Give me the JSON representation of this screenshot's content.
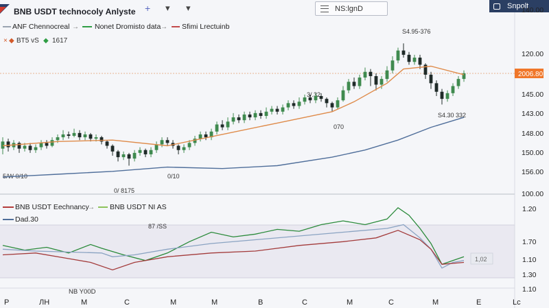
{
  "header": {
    "title": "BNB USDT technocoly  Anlyste",
    "add_label": "+",
    "dropdown_1": "▾",
    "dropdown_2": "▾",
    "ns_label": "NS:lgnD",
    "snapshot_label": "Snpolt"
  },
  "legend_top": {
    "items": [
      {
        "label": "ANF Chennocreal",
        "color": "#9aa3b0"
      },
      {
        "label": "Nonet Dromisto data",
        "color": "#2e9d44"
      },
      {
        "label": "Sfimi Lrectuinb",
        "color": "#c24a4a"
      }
    ],
    "sub_label": "BT5 vS",
    "sub_value": "1617"
  },
  "legend_bottom": {
    "items": [
      {
        "label": "BNB USDT Eechnancy",
        "color": "#b43b3b"
      },
      {
        "label": "BNB USDT NI AS",
        "color": "#8cc35a"
      }
    ],
    "sub": {
      "label": "Dad.30",
      "color": "#4f6e9a"
    }
  },
  "annotations": {
    "peak": "S4.95-376",
    "mid": "3/.32",
    "mid_low": "070",
    "right_low": "S4.30  332",
    "left_low": "5/W  0/10",
    "low_1": "0/ 8175",
    "low_2": "0/10",
    "osc_label": "87 /SS",
    "osc_bottom": "NB Y00D",
    "right_box": "1,02"
  },
  "price_label": "2006.80",
  "axis": {
    "top_right": "140.00",
    "y_upper": [
      "120.00",
      "120.00",
      "145.00",
      "143.00",
      "148.00",
      "150.00",
      "156.00",
      "100.00"
    ],
    "y_lower": [
      "1.20",
      "1.70",
      "1.10",
      "1.30",
      "1.10"
    ],
    "x_labels": [
      "P",
      "ЛH",
      "M",
      "C",
      "M",
      "M",
      "B",
      "C",
      "M",
      "C",
      "M",
      "E",
      "Lc"
    ]
  },
  "colors": {
    "up": "#3f8a4f",
    "down": "#1f2a28",
    "orange": "#df8b4a",
    "blue": "#4f6e9a",
    "green_line": "#2a8a3a",
    "red_line": "#a33b3b",
    "lightblue_line": "#8aa3c2",
    "pricetag": "#f0772a",
    "band": "#e6e4ee"
  },
  "chart_data": [
    {
      "type": "candlestick",
      "title": "",
      "y_axis_labels": [
        "140.00",
        "120.00",
        "120.00",
        "145.00",
        "143.00",
        "148.00",
        "150.00",
        "156.00",
        "100.00"
      ],
      "candles": [
        {
          "i": 0,
          "o": 62,
          "c": 67,
          "h": 70,
          "l": 58
        },
        {
          "i": 1,
          "o": 67,
          "c": 63,
          "h": 69,
          "l": 60
        },
        {
          "i": 2,
          "o": 63,
          "c": 66,
          "h": 68,
          "l": 61
        },
        {
          "i": 3,
          "o": 66,
          "c": 62,
          "h": 67,
          "l": 59
        },
        {
          "i": 4,
          "o": 62,
          "c": 64,
          "h": 66,
          "l": 60
        },
        {
          "i": 5,
          "o": 64,
          "c": 61,
          "h": 66,
          "l": 59
        },
        {
          "i": 6,
          "o": 61,
          "c": 63,
          "h": 65,
          "l": 59
        },
        {
          "i": 7,
          "o": 63,
          "c": 66,
          "h": 68,
          "l": 61
        },
        {
          "i": 8,
          "o": 66,
          "c": 64,
          "h": 68,
          "l": 62
        },
        {
          "i": 9,
          "o": 64,
          "c": 68,
          "h": 70,
          "l": 63
        },
        {
          "i": 10,
          "o": 68,
          "c": 70,
          "h": 72,
          "l": 66
        },
        {
          "i": 11,
          "o": 70,
          "c": 72,
          "h": 75,
          "l": 68
        },
        {
          "i": 12,
          "o": 72,
          "c": 71,
          "h": 74,
          "l": 69
        },
        {
          "i": 13,
          "o": 71,
          "c": 73,
          "h": 76,
          "l": 70
        },
        {
          "i": 14,
          "o": 73,
          "c": 70,
          "h": 75,
          "l": 68
        },
        {
          "i": 15,
          "o": 70,
          "c": 72,
          "h": 74,
          "l": 68
        },
        {
          "i": 16,
          "o": 72,
          "c": 69,
          "h": 73,
          "l": 67
        },
        {
          "i": 17,
          "o": 69,
          "c": 70,
          "h": 72,
          "l": 67
        },
        {
          "i": 18,
          "o": 70,
          "c": 67,
          "h": 71,
          "l": 65
        },
        {
          "i": 19,
          "o": 67,
          "c": 64,
          "h": 68,
          "l": 62
        },
        {
          "i": 20,
          "o": 64,
          "c": 60,
          "h": 65,
          "l": 57
        },
        {
          "i": 21,
          "o": 60,
          "c": 56,
          "h": 61,
          "l": 53
        },
        {
          "i": 22,
          "o": 56,
          "c": 58,
          "h": 60,
          "l": 54
        },
        {
          "i": 23,
          "o": 58,
          "c": 55,
          "h": 59,
          "l": 50
        },
        {
          "i": 24,
          "o": 55,
          "c": 59,
          "h": 61,
          "l": 53
        },
        {
          "i": 25,
          "o": 59,
          "c": 61,
          "h": 63,
          "l": 57
        },
        {
          "i": 26,
          "o": 61,
          "c": 58,
          "h": 62,
          "l": 56
        },
        {
          "i": 27,
          "o": 58,
          "c": 61,
          "h": 63,
          "l": 56
        },
        {
          "i": 28,
          "o": 61,
          "c": 65,
          "h": 67,
          "l": 59
        },
        {
          "i": 29,
          "o": 65,
          "c": 68,
          "h": 70,
          "l": 63
        },
        {
          "i": 30,
          "o": 68,
          "c": 66,
          "h": 70,
          "l": 64
        },
        {
          "i": 31,
          "o": 66,
          "c": 64,
          "h": 68,
          "l": 62
        },
        {
          "i": 32,
          "o": 64,
          "c": 61,
          "h": 65,
          "l": 58
        },
        {
          "i": 33,
          "o": 61,
          "c": 63,
          "h": 65,
          "l": 59
        },
        {
          "i": 34,
          "o": 63,
          "c": 66,
          "h": 68,
          "l": 61
        },
        {
          "i": 35,
          "o": 66,
          "c": 69,
          "h": 71,
          "l": 64
        },
        {
          "i": 36,
          "o": 69,
          "c": 72,
          "h": 74,
          "l": 67
        },
        {
          "i": 37,
          "o": 72,
          "c": 70,
          "h": 74,
          "l": 68
        },
        {
          "i": 38,
          "o": 70,
          "c": 74,
          "h": 76,
          "l": 68
        },
        {
          "i": 39,
          "o": 74,
          "c": 79,
          "h": 81,
          "l": 72
        },
        {
          "i": 40,
          "o": 79,
          "c": 77,
          "h": 82,
          "l": 75
        },
        {
          "i": 41,
          "o": 77,
          "c": 81,
          "h": 84,
          "l": 75
        },
        {
          "i": 42,
          "o": 81,
          "c": 84,
          "h": 87,
          "l": 79
        },
        {
          "i": 43,
          "o": 84,
          "c": 82,
          "h": 86,
          "l": 80
        },
        {
          "i": 44,
          "o": 82,
          "c": 86,
          "h": 88,
          "l": 80
        },
        {
          "i": 45,
          "o": 86,
          "c": 84,
          "h": 88,
          "l": 82
        },
        {
          "i": 46,
          "o": 84,
          "c": 87,
          "h": 89,
          "l": 82
        },
        {
          "i": 47,
          "o": 87,
          "c": 85,
          "h": 89,
          "l": 83
        },
        {
          "i": 48,
          "o": 85,
          "c": 88,
          "h": 91,
          "l": 83
        },
        {
          "i": 49,
          "o": 88,
          "c": 90,
          "h": 92,
          "l": 86
        },
        {
          "i": 50,
          "o": 90,
          "c": 88,
          "h": 92,
          "l": 86
        },
        {
          "i": 51,
          "o": 88,
          "c": 91,
          "h": 93,
          "l": 86
        },
        {
          "i": 52,
          "o": 91,
          "c": 94,
          "h": 96,
          "l": 89
        },
        {
          "i": 53,
          "o": 94,
          "c": 92,
          "h": 96,
          "l": 90
        },
        {
          "i": 54,
          "o": 92,
          "c": 95,
          "h": 98,
          "l": 90
        },
        {
          "i": 55,
          "o": 95,
          "c": 98,
          "h": 100,
          "l": 93
        },
        {
          "i": 56,
          "o": 98,
          "c": 96,
          "h": 100,
          "l": 94
        },
        {
          "i": 57,
          "o": 96,
          "c": 99,
          "h": 101,
          "l": 94
        },
        {
          "i": 58,
          "o": 99,
          "c": 97,
          "h": 101,
          "l": 95
        },
        {
          "i": 59,
          "o": 97,
          "c": 94,
          "h": 98,
          "l": 91
        },
        {
          "i": 60,
          "o": 94,
          "c": 91,
          "h": 95,
          "l": 88
        },
        {
          "i": 61,
          "o": 91,
          "c": 96,
          "h": 98,
          "l": 90
        },
        {
          "i": 62,
          "o": 96,
          "c": 103,
          "h": 106,
          "l": 95
        },
        {
          "i": 63,
          "o": 103,
          "c": 109,
          "h": 111,
          "l": 101
        },
        {
          "i": 64,
          "o": 109,
          "c": 106,
          "h": 112,
          "l": 104
        },
        {
          "i": 65,
          "o": 106,
          "c": 112,
          "h": 114,
          "l": 104
        },
        {
          "i": 66,
          "o": 112,
          "c": 116,
          "h": 119,
          "l": 110
        },
        {
          "i": 67,
          "o": 116,
          "c": 113,
          "h": 118,
          "l": 106
        },
        {
          "i": 68,
          "o": 113,
          "c": 107,
          "h": 115,
          "l": 103
        },
        {
          "i": 69,
          "o": 107,
          "c": 111,
          "h": 113,
          "l": 104
        },
        {
          "i": 70,
          "o": 111,
          "c": 117,
          "h": 120,
          "l": 109
        },
        {
          "i": 71,
          "o": 117,
          "c": 124,
          "h": 127,
          "l": 115
        },
        {
          "i": 72,
          "o": 124,
          "c": 131,
          "h": 133,
          "l": 122
        },
        {
          "i": 73,
          "o": 131,
          "c": 128,
          "h": 136,
          "l": 126
        },
        {
          "i": 74,
          "o": 128,
          "c": 123,
          "h": 130,
          "l": 121
        },
        {
          "i": 75,
          "o": 123,
          "c": 126,
          "h": 128,
          "l": 121
        },
        {
          "i": 76,
          "o": 126,
          "c": 121,
          "h": 128,
          "l": 118
        },
        {
          "i": 77,
          "o": 121,
          "c": 114,
          "h": 122,
          "l": 111
        },
        {
          "i": 78,
          "o": 114,
          "c": 108,
          "h": 116,
          "l": 104
        },
        {
          "i": 79,
          "o": 108,
          "c": 102,
          "h": 110,
          "l": 99
        },
        {
          "i": 80,
          "o": 102,
          "c": 97,
          "h": 104,
          "l": 93
        },
        {
          "i": 81,
          "o": 97,
          "c": 101,
          "h": 103,
          "l": 95
        },
        {
          "i": 82,
          "o": 101,
          "c": 106,
          "h": 108,
          "l": 99
        },
        {
          "i": 83,
          "o": 106,
          "c": 111,
          "h": 113,
          "l": 104
        },
        {
          "i": 84,
          "o": 111,
          "c": 115,
          "h": 117,
          "l": 109
        }
      ],
      "series": [
        {
          "color": "#df8b4a",
          "values": [
            [
              0,
              64
            ],
            [
              10,
              67
            ],
            [
              20,
              68
            ],
            [
              30,
              64
            ],
            [
              40,
              72
            ],
            [
              50,
              80
            ],
            [
              60,
              88
            ],
            [
              64,
              95
            ],
            [
              70,
              108
            ],
            [
              73,
              118
            ],
            [
              78,
              120
            ],
            [
              84,
              114
            ]
          ]
        },
        {
          "color": "#4f6e9a",
          "values": [
            [
              0,
              42
            ],
            [
              10,
              44
            ],
            [
              20,
              46
            ],
            [
              30,
              49
            ],
            [
              40,
              48
            ],
            [
              50,
              50
            ],
            [
              60,
              56
            ],
            [
              66,
              61
            ],
            [
              72,
              68
            ],
            [
              78,
              77
            ],
            [
              84,
              84
            ]
          ]
        }
      ]
    },
    {
      "type": "line",
      "title": "",
      "y_axis_labels": [
        "1.20",
        "1.70",
        "1.10",
        "1.30",
        "1.10"
      ],
      "series": [
        {
          "color": "#2a8a3a",
          "values": [
            [
              0,
              38
            ],
            [
              4,
              33
            ],
            [
              8,
              36
            ],
            [
              12,
              30
            ],
            [
              16,
              39
            ],
            [
              18,
              35
            ],
            [
              22,
              28
            ],
            [
              26,
              22
            ],
            [
              30,
              30
            ],
            [
              34,
              42
            ],
            [
              38,
              52
            ],
            [
              42,
              47
            ],
            [
              46,
              50
            ],
            [
              50,
              55
            ],
            [
              54,
              53
            ],
            [
              58,
              60
            ],
            [
              62,
              64
            ],
            [
              66,
              60
            ],
            [
              70,
              66
            ],
            [
              72,
              78
            ],
            [
              74,
              70
            ],
            [
              76,
              56
            ],
            [
              78,
              40
            ],
            [
              80,
              18
            ],
            [
              82,
              22
            ],
            [
              84,
              26
            ]
          ]
        },
        {
          "color": "#8aa3c2",
          "values": [
            [
              0,
              34
            ],
            [
              6,
              32
            ],
            [
              12,
              31
            ],
            [
              18,
              30
            ],
            [
              20,
              26
            ],
            [
              24,
              28
            ],
            [
              30,
              34
            ],
            [
              38,
              40
            ],
            [
              46,
              44
            ],
            [
              54,
              48
            ],
            [
              62,
              52
            ],
            [
              70,
              56
            ],
            [
              73,
              60
            ],
            [
              76,
              46
            ],
            [
              78,
              34
            ],
            [
              80,
              14
            ],
            [
              82,
              20
            ],
            [
              84,
              22
            ]
          ]
        },
        {
          "color": "#a33b3b",
          "values": [
            [
              0,
              28
            ],
            [
              6,
              30
            ],
            [
              12,
              24
            ],
            [
              16,
              20
            ],
            [
              20,
              12
            ],
            [
              24,
              20
            ],
            [
              30,
              26
            ],
            [
              38,
              30
            ],
            [
              46,
              32
            ],
            [
              54,
              38
            ],
            [
              62,
              42
            ],
            [
              68,
              46
            ],
            [
              72,
              54
            ],
            [
              76,
              44
            ],
            [
              78,
              34
            ],
            [
              80,
              18
            ],
            [
              84,
              20
            ]
          ]
        }
      ]
    }
  ]
}
